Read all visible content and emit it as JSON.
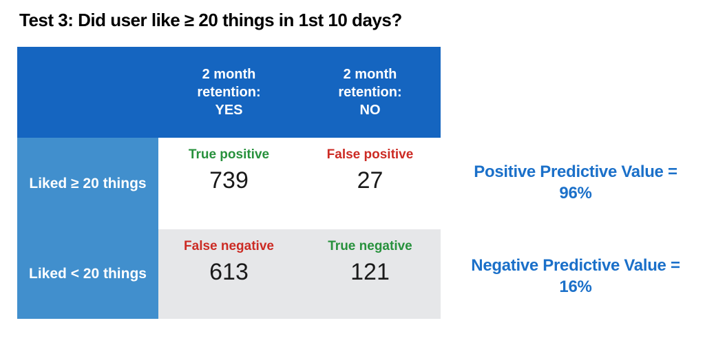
{
  "title": "Test 3: Did user like ≥ 20 things in 1st 10 days?",
  "colors": {
    "header_blue": "#1565C0",
    "row_blue": "#418FCD",
    "cell_gray": "#E6E7E9",
    "green": "#27913C",
    "red": "#CC2B24",
    "accent_blue": "#1B70C9"
  },
  "matrix": {
    "col_headers": [
      {
        "lines": [
          "2 month",
          "retention:",
          "YES"
        ]
      },
      {
        "lines": [
          "2 month",
          "retention:",
          "NO"
        ]
      }
    ],
    "rows": [
      {
        "label": "Liked ≥ 20 things",
        "cells": [
          {
            "tag": "True positive",
            "value": "739"
          },
          {
            "tag": "False positive",
            "value": "27"
          }
        ]
      },
      {
        "label": "Liked < 20 things",
        "cells": [
          {
            "tag": "False negative",
            "value": "613"
          },
          {
            "tag": "True negative",
            "value": "121"
          }
        ]
      }
    ]
  },
  "annotations": [
    {
      "line1": "Positive Predictive Value =",
      "line2": "96%"
    },
    {
      "line1": "Negative Predictive Value =",
      "line2": "16%"
    }
  ],
  "chart_data": {
    "type": "table",
    "title": "Test 3: Did user like ≥ 20 things in 1st 10 days?",
    "columns": [
      "",
      "2 month retention: YES",
      "2 month retention: NO"
    ],
    "rows": [
      [
        "Liked ≥ 20 things",
        739,
        27
      ],
      [
        "Liked < 20 things",
        613,
        121
      ]
    ],
    "cell_labels": [
      [
        "True positive",
        "False positive"
      ],
      [
        "False negative",
        "True negative"
      ]
    ],
    "annotations": [
      "Positive Predictive Value = 96%",
      "Negative Predictive Value = 16%"
    ]
  }
}
